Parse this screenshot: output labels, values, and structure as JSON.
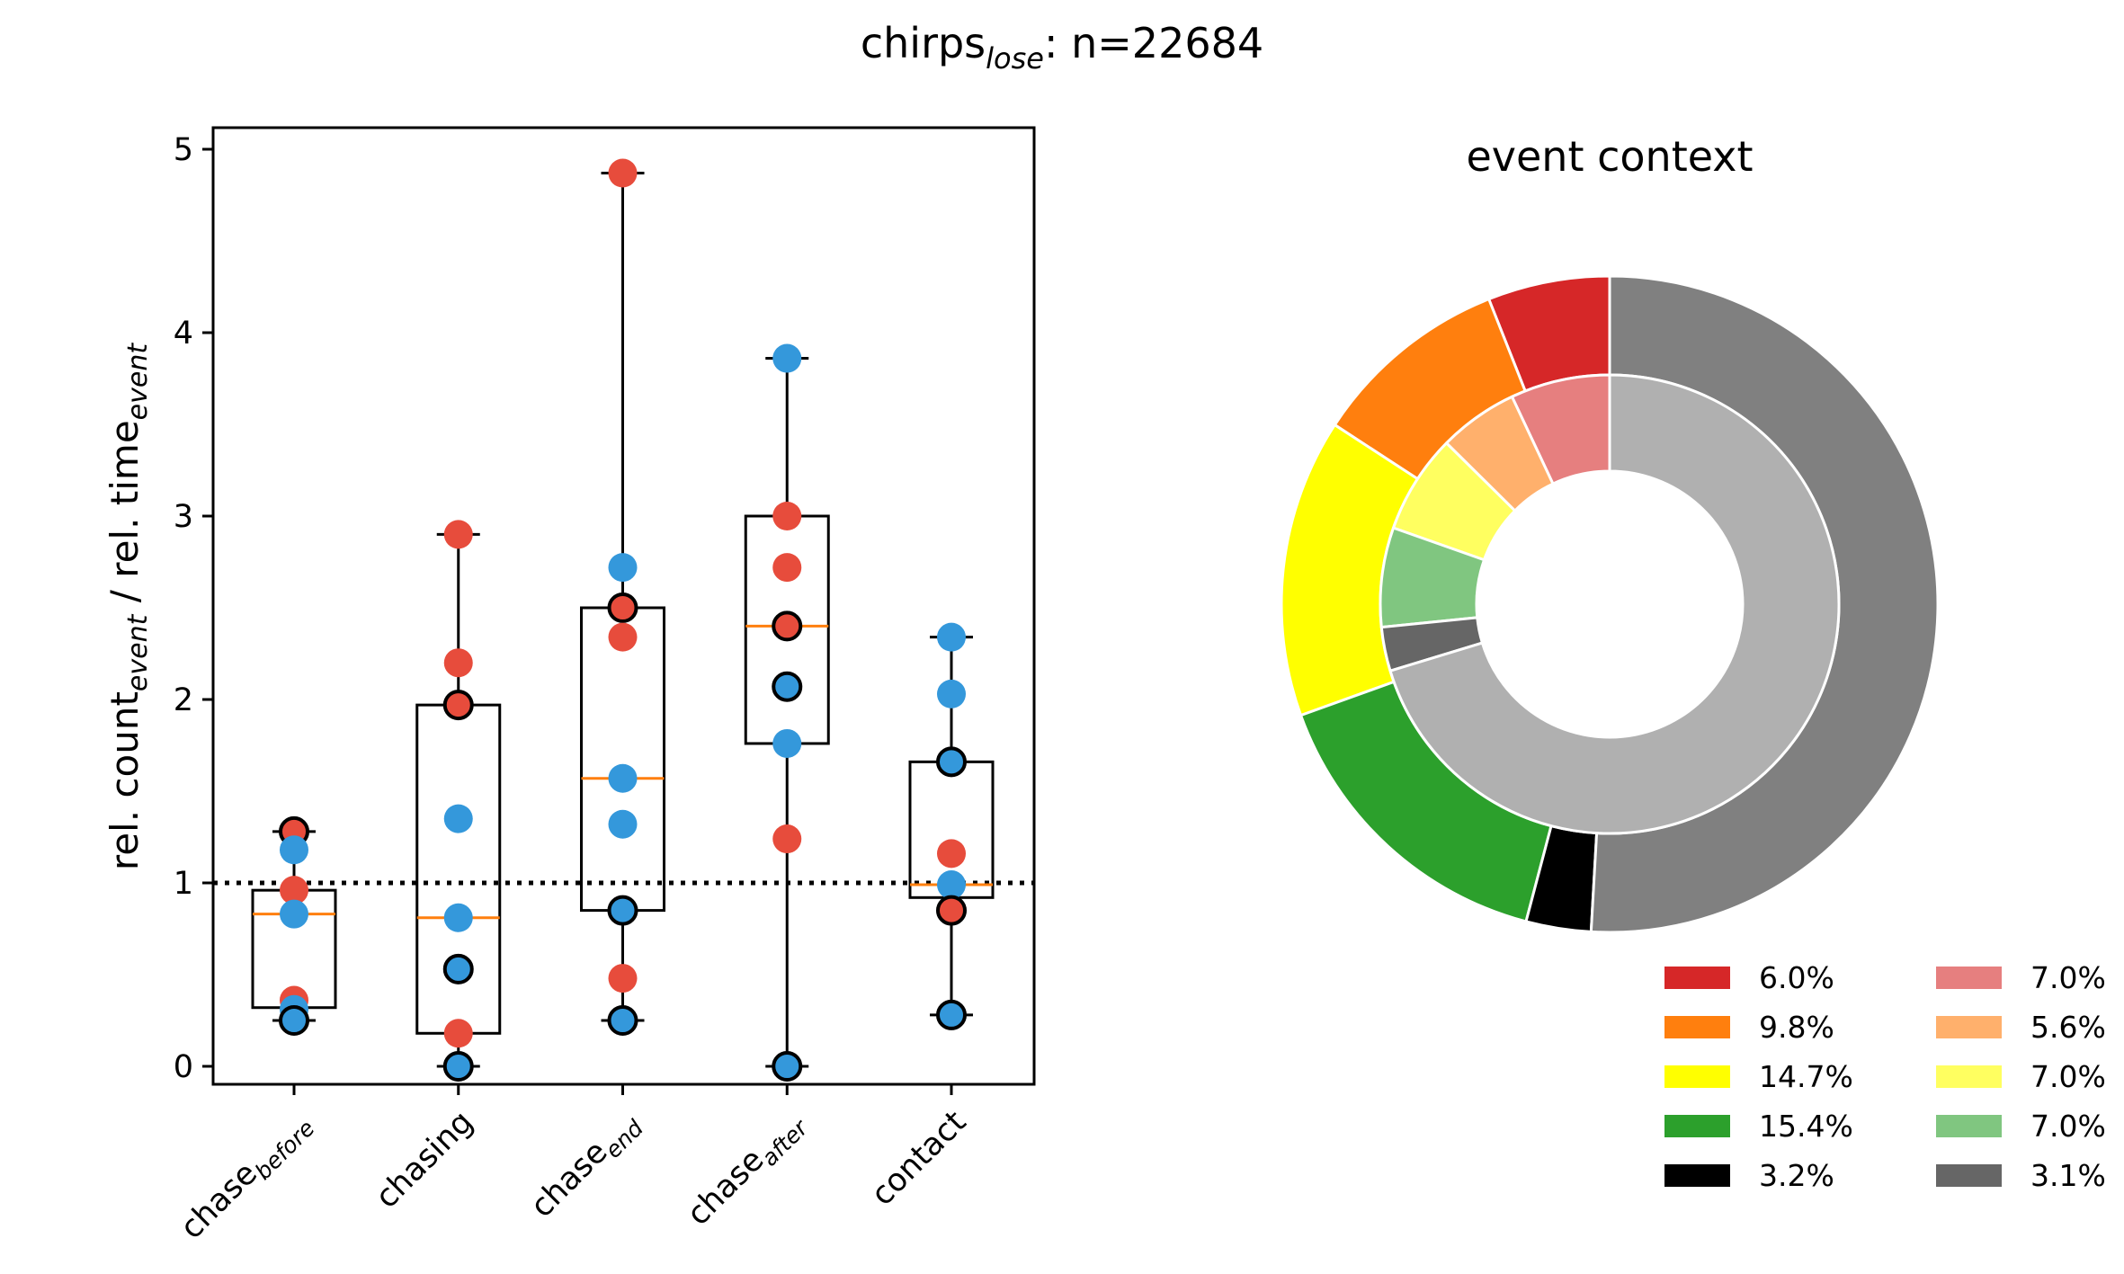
{
  "figure": {
    "title_main": "chirps",
    "title_sub": "lose",
    "title_suffix": ": n=22684"
  },
  "chart_data": [
    {
      "type": "box",
      "ylabel": {
        "part1": "rel. count",
        "sub1": "event",
        "part2": " / rel. time",
        "sub2": "event"
      },
      "ylim": [
        -0.1,
        5.1
      ],
      "yticks": [
        "0",
        "1",
        "2",
        "3",
        "4",
        "5"
      ],
      "reference_line": 1,
      "categories": [
        {
          "base": "chase",
          "sub": "before"
        },
        {
          "base": "chasing",
          "sub": ""
        },
        {
          "base": "chase",
          "sub": "end"
        },
        {
          "base": "chase",
          "sub": "after"
        },
        {
          "base": "contact",
          "sub": ""
        }
      ],
      "boxes": [
        {
          "q1": 0.32,
          "median": 0.83,
          "q3": 0.96,
          "whisker_low": 0.25,
          "whisker_high": 1.28
        },
        {
          "q1": 0.18,
          "median": 0.81,
          "q3": 1.97,
          "whisker_low": 0.0,
          "whisker_high": 2.9
        },
        {
          "q1": 0.85,
          "median": 1.57,
          "q3": 2.5,
          "whisker_low": 0.25,
          "whisker_high": 4.87
        },
        {
          "q1": 1.76,
          "median": 2.4,
          "q3": 3.0,
          "whisker_low": 0.0,
          "whisker_high": 3.86
        },
        {
          "q1": 0.92,
          "median": 0.99,
          "q3": 1.66,
          "whisker_low": 0.28,
          "whisker_high": 2.34
        }
      ],
      "points": [
        [
          {
            "y": 1.28,
            "c": "red",
            "edge": true
          },
          {
            "y": 1.18,
            "c": "blue",
            "edge": false
          },
          {
            "y": 0.96,
            "c": "red",
            "edge": false
          },
          {
            "y": 0.83,
            "c": "blue",
            "edge": false
          },
          {
            "y": 0.36,
            "c": "red",
            "edge": false
          },
          {
            "y": 0.31,
            "c": "blue",
            "edge": false
          },
          {
            "y": 0.25,
            "c": "blue",
            "edge": true
          }
        ],
        [
          {
            "y": 2.9,
            "c": "red",
            "edge": false
          },
          {
            "y": 2.2,
            "c": "red",
            "edge": false
          },
          {
            "y": 1.97,
            "c": "red",
            "edge": true
          },
          {
            "y": 1.35,
            "c": "blue",
            "edge": false
          },
          {
            "y": 0.81,
            "c": "blue",
            "edge": false
          },
          {
            "y": 0.53,
            "c": "blue",
            "edge": true
          },
          {
            "y": 0.18,
            "c": "red",
            "edge": false
          },
          {
            "y": 0.0,
            "c": "blue",
            "edge": true
          }
        ],
        [
          {
            "y": 4.87,
            "c": "red",
            "edge": false
          },
          {
            "y": 2.72,
            "c": "blue",
            "edge": false
          },
          {
            "y": 2.5,
            "c": "red",
            "edge": true
          },
          {
            "y": 2.34,
            "c": "red",
            "edge": false
          },
          {
            "y": 1.57,
            "c": "blue",
            "edge": false
          },
          {
            "y": 1.32,
            "c": "blue",
            "edge": false
          },
          {
            "y": 0.85,
            "c": "blue",
            "edge": true
          },
          {
            "y": 0.48,
            "c": "red",
            "edge": false
          },
          {
            "y": 0.25,
            "c": "blue",
            "edge": true
          }
        ],
        [
          {
            "y": 3.86,
            "c": "blue",
            "edge": false
          },
          {
            "y": 3.0,
            "c": "red",
            "edge": false
          },
          {
            "y": 2.72,
            "c": "red",
            "edge": false
          },
          {
            "y": 2.4,
            "c": "red",
            "edge": true
          },
          {
            "y": 2.07,
            "c": "blue",
            "edge": true
          },
          {
            "y": 1.76,
            "c": "blue",
            "edge": false
          },
          {
            "y": 1.24,
            "c": "red",
            "edge": false
          },
          {
            "y": 0.0,
            "c": "blue",
            "edge": true
          }
        ],
        [
          {
            "y": 2.34,
            "c": "blue",
            "edge": false
          },
          {
            "y": 2.03,
            "c": "blue",
            "edge": false
          },
          {
            "y": 1.66,
            "c": "blue",
            "edge": true
          },
          {
            "y": 1.16,
            "c": "red",
            "edge": false
          },
          {
            "y": 0.99,
            "c": "blue",
            "edge": false
          },
          {
            "y": 0.85,
            "c": "red",
            "edge": true
          },
          {
            "y": 0.28,
            "c": "blue",
            "edge": true
          }
        ]
      ],
      "colors": {
        "red": "#e74c3c",
        "blue": "#3498db",
        "median": "#ff7f0e"
      }
    },
    {
      "type": "pie",
      "title": "event context",
      "outer_ring": [
        {
          "value": 6.0,
          "color": "#d62728"
        },
        {
          "value": 9.8,
          "color": "#ff7f0e"
        },
        {
          "value": 14.7,
          "color": "#ffff00"
        },
        {
          "value": 15.4,
          "color": "#2ca02c"
        },
        {
          "value": 3.2,
          "color": "#000000"
        },
        {
          "value": 50.9,
          "color": "#808080"
        }
      ],
      "inner_ring": [
        {
          "value": 7.0,
          "color": "#e67f7f"
        },
        {
          "value": 5.6,
          "color": "#ffb06c"
        },
        {
          "value": 7.0,
          "color": "#ffff60"
        },
        {
          "value": 7.0,
          "color": "#80c680"
        },
        {
          "value": 3.1,
          "color": "#666666"
        },
        {
          "value": 70.3,
          "color": "#b0b0b0"
        }
      ],
      "legend_left": [
        {
          "label": "6.0%",
          "color": "#d62728"
        },
        {
          "label": "9.8%",
          "color": "#ff7f0e"
        },
        {
          "label": "14.7%",
          "color": "#ffff00"
        },
        {
          "label": "15.4%",
          "color": "#2ca02c"
        },
        {
          "label": "3.2%",
          "color": "#000000"
        }
      ],
      "legend_right": [
        {
          "label": "7.0%",
          "color": "#e67f7f"
        },
        {
          "label": "5.6%",
          "color": "#ffb06c"
        },
        {
          "label": "7.0%",
          "color": "#ffff60"
        },
        {
          "label": "7.0%",
          "color": "#80c680"
        },
        {
          "label": "3.1%",
          "color": "#666666"
        }
      ]
    }
  ]
}
